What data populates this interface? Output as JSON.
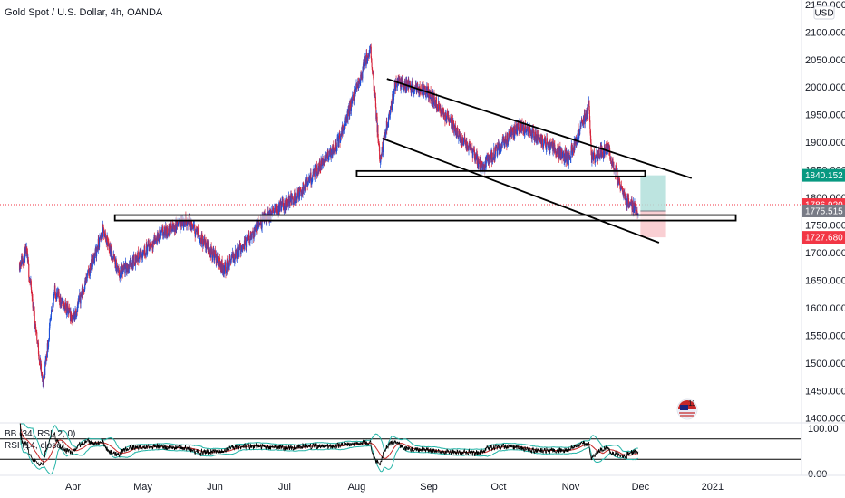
{
  "header": {
    "title": "Gold Spot / U.S. Dollar, 4h, OANDA",
    "currency": "USD"
  },
  "indicators": {
    "bb": "BB (34, RSI, 2, 0)",
    "rsi": "RSI (14, close)"
  },
  "colors": {
    "up": "#26a69a",
    "down": "#ef5350",
    "bullish_candle": "#1e4fd8",
    "bearish_candle": "#d7263d",
    "last_price": "#f23645",
    "target_zone": "#b2dfdb",
    "stop_zone": "#f8c7cb",
    "bb_band": "#26b5a8",
    "rsi_line": "#000000",
    "rsi_basis": "#c62828"
  },
  "chart_data": {
    "type": "candlestick",
    "title": "Gold Spot / U.S. Dollar, 4h, OANDA",
    "x_labels": [
      "Apr",
      "May",
      "Jun",
      "Jul",
      "Aug",
      "Sep",
      "Oct",
      "Nov",
      "Dec",
      "2021"
    ],
    "y_ticks": [
      2150,
      2100,
      2050,
      2000,
      1950,
      1900,
      1850,
      1800,
      1750,
      1700,
      1650,
      1600,
      1550,
      1500,
      1450,
      1400
    ],
    "y_tick_labels": [
      "2150.000",
      "2100.000",
      "2050.000",
      "2000.000",
      "1950.000",
      "1900.000",
      "1850.000",
      "1800.000",
      "1750.000",
      "1700.000",
      "1650.000",
      "1600.000",
      "1550.000",
      "1500.000",
      "1450.000",
      "1400.000"
    ],
    "ylim": [
      1393,
      2158
    ],
    "price_path": [
      {
        "date": "2020-03-09",
        "price": 1680
      },
      {
        "date": "2020-03-12",
        "price": 1700
      },
      {
        "date": "2020-03-19",
        "price": 1460
      },
      {
        "date": "2020-03-24",
        "price": 1630
      },
      {
        "date": "2020-04-01",
        "price": 1580
      },
      {
        "date": "2020-04-14",
        "price": 1740
      },
      {
        "date": "2020-04-21",
        "price": 1660
      },
      {
        "date": "2020-05-08",
        "price": 1730
      },
      {
        "date": "2020-05-20",
        "price": 1760
      },
      {
        "date": "2020-06-05",
        "price": 1670
      },
      {
        "date": "2020-06-22",
        "price": 1760
      },
      {
        "date": "2020-07-08",
        "price": 1810
      },
      {
        "date": "2020-07-24",
        "price": 1900
      },
      {
        "date": "2020-08-07",
        "price": 2072
      },
      {
        "date": "2020-08-11",
        "price": 1870
      },
      {
        "date": "2020-08-18",
        "price": 2010
      },
      {
        "date": "2020-09-01",
        "price": 1990
      },
      {
        "date": "2020-09-24",
        "price": 1855
      },
      {
        "date": "2020-10-10",
        "price": 1930
      },
      {
        "date": "2020-10-31",
        "price": 1870
      },
      {
        "date": "2020-11-09",
        "price": 1965
      },
      {
        "date": "2020-11-10",
        "price": 1870
      },
      {
        "date": "2020-11-17",
        "price": 1890
      },
      {
        "date": "2020-11-24",
        "price": 1800
      },
      {
        "date": "2020-11-30",
        "price": 1772
      }
    ],
    "trendlines": [
      {
        "from": {
          "date": "2020-08-14",
          "price": 2015
        },
        "to": {
          "date": "2020-12-23",
          "price": 1835
        }
      },
      {
        "from": {
          "date": "2020-08-12",
          "price": 1907
        },
        "to": {
          "date": "2020-12-09",
          "price": 1718
        }
      }
    ],
    "horizontal_zones": [
      {
        "from_date": "2020-08-01",
        "to_date": "2020-12-03",
        "top": 1848,
        "bottom": 1842
      },
      {
        "from_date": "2020-04-19",
        "to_date": "2021-01-11",
        "top": 1768,
        "bottom": 1762
      }
    ],
    "position": {
      "from_date": "2020-12-01",
      "to_date": "2020-12-12",
      "target": 1840.152,
      "entry": 1775.515,
      "stop": 1727.68
    },
    "price_labels": [
      {
        "value": 1840.152,
        "text": "1840.152",
        "kind": "target"
      },
      {
        "value": 1786.92,
        "text": "1786.920",
        "kind": "last"
      },
      {
        "value": 1775.515,
        "text": "1775.515",
        "kind": "entry"
      },
      {
        "value": 1727.68,
        "text": "1727.680",
        "kind": "stop"
      }
    ],
    "last_price": 1786.92,
    "rsi_panel": {
      "y_ticks": [
        0,
        100
      ],
      "y_tick_labels": [
        "0.00",
        "100.00"
      ],
      "bands": [
        70,
        30
      ]
    }
  }
}
